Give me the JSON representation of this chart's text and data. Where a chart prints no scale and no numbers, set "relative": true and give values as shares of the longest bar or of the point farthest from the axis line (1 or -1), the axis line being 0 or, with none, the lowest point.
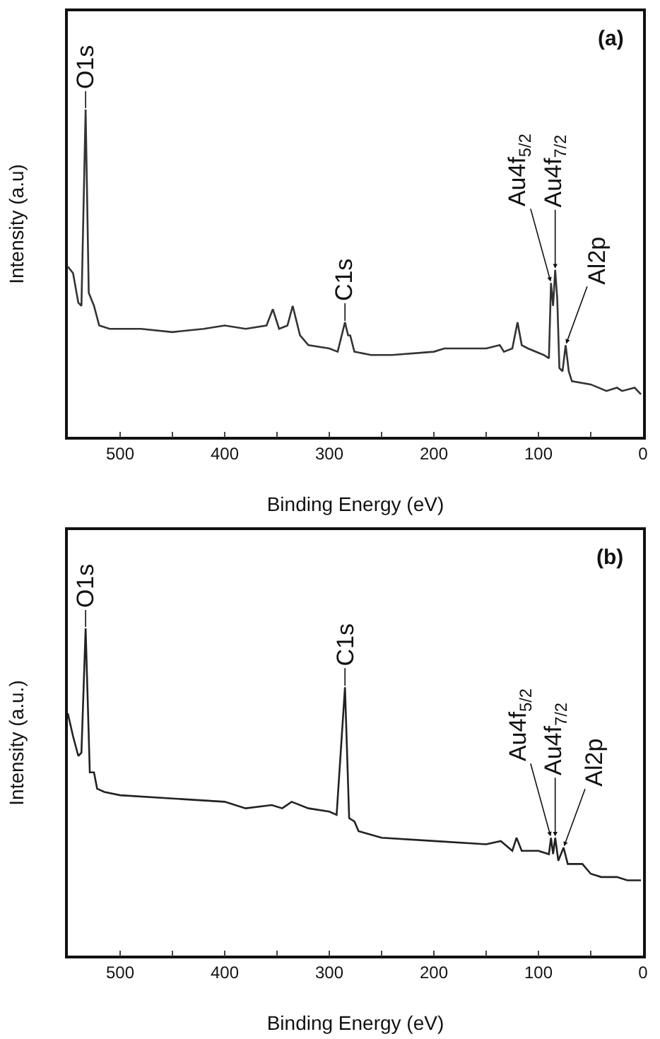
{
  "chart_data": [
    {
      "type": "line",
      "relative": true,
      "xlabel": "Binding Energy (eV)",
      "ylabel": "Intensity (a.u)",
      "xlim": [
        550,
        0
      ],
      "xticks": [
        500,
        {
          "value": 450,
          "label": null
        },
        400,
        {
          "value": 350,
          "label": null
        },
        300,
        {
          "value": 250,
          "label": null
        },
        200,
        {
          "value": 150,
          "label": null
        },
        100,
        {
          "value": 50,
          "label": null
        },
        0
      ],
      "grid": false,
      "line_style": "solid",
      "marker": "none",
      "x": [
        550,
        545,
        540,
        537,
        533,
        530,
        525,
        520,
        510,
        480,
        450,
        420,
        400,
        380,
        360,
        354,
        348,
        340,
        335,
        328,
        320,
        300,
        292,
        285,
        282,
        280,
        276,
        260,
        240,
        200,
        190,
        150,
        137,
        133,
        125,
        120,
        116,
        110,
        95,
        90,
        88,
        86,
        84,
        82,
        80,
        77,
        74,
        71,
        68,
        50,
        35,
        25,
        20,
        8,
        2
      ],
      "series": [
        {
          "color": "#333333",
          "values": [
            0.52,
            0.5,
            0.41,
            0.4,
            1,
            0.44,
            0.4,
            0.34,
            0.33,
            0.33,
            0.32,
            0.33,
            0.34,
            0.33,
            0.34,
            0.39,
            0.33,
            0.34,
            0.4,
            0.31,
            0.28,
            0.27,
            0.26,
            0.35,
            0.31,
            0.31,
            0.26,
            0.25,
            0.25,
            0.26,
            0.27,
            0.27,
            0.28,
            0.26,
            0.27,
            0.35,
            0.28,
            0.27,
            0.25,
            0.24,
            0.47,
            0.4,
            0.51,
            0.42,
            0.21,
            0.2,
            0.28,
            0.2,
            0.17,
            0.16,
            0.14,
            0.15,
            0.14,
            0.15,
            0.13
          ]
        }
      ],
      "annotations": [
        "(a)",
        {
          "text": "O1s",
          "x": 533,
          "y": 1
        },
        {
          "text": "C1s",
          "x": 285,
          "y": 0.35
        },
        {
          "text": "Au4f$_{5/2}$",
          "x": 88,
          "y": 0.47
        },
        {
          "text": "Au4f$_{7/2}$",
          "x": 84,
          "y": 0.51
        },
        {
          "text": "Al2p",
          "x": 74,
          "y": 0.28
        }
      ]
    },
    {
      "type": "line",
      "relative": true,
      "xlabel": "Binding Energy (eV)",
      "ylabel": "Intensity (a.u.)",
      "xlim": [
        550,
        0
      ],
      "xticks": [
        500,
        {
          "value": 450,
          "label": null
        },
        400,
        {
          "value": 350,
          "label": null
        },
        300,
        {
          "value": 250,
          "label": null
        },
        200,
        {
          "value": 150,
          "label": null
        },
        100,
        {
          "value": 50,
          "label": null
        },
        0
      ],
      "grid": false,
      "line_style": "solid",
      "marker": "none",
      "x": [
        550,
        545,
        540,
        537,
        533,
        529,
        525,
        522,
        515,
        500,
        450,
        400,
        380,
        355,
        345,
        336,
        320,
        300,
        293,
        285,
        281,
        276,
        272,
        250,
        200,
        150,
        136,
        125,
        121,
        116,
        100,
        90,
        88,
        86,
        84,
        81,
        76,
        72,
        65,
        58,
        50,
        40,
        25,
        15,
        2
      ],
      "series": [
        {
          "color": "#222222",
          "values": [
            0.74,
            0.67,
            0.61,
            0.62,
            1,
            0.56,
            0.56,
            0.51,
            0.5,
            0.49,
            0.48,
            0.47,
            0.45,
            0.46,
            0.45,
            0.47,
            0.45,
            0.44,
            0.43,
            0.82,
            0.42,
            0.41,
            0.38,
            0.36,
            0.35,
            0.34,
            0.35,
            0.32,
            0.36,
            0.32,
            0.32,
            0.31,
            0.36,
            0.31,
            0.36,
            0.29,
            0.33,
            0.28,
            0.28,
            0.28,
            0.25,
            0.24,
            0.24,
            0.23,
            0.23
          ]
        }
      ],
      "annotations": [
        "(b)",
        {
          "text": "O1s",
          "x": 533,
          "y": 1
        },
        {
          "text": "C1s",
          "x": 285,
          "y": 0.82
        },
        {
          "text": "Au4f$_{5/2}$",
          "x": 88,
          "y": 0.36
        },
        {
          "text": "Au4f$_{7/2}$",
          "x": 84,
          "y": 0.36
        },
        {
          "text": "Al2p",
          "x": 76,
          "y": 0.33
        }
      ]
    }
  ]
}
